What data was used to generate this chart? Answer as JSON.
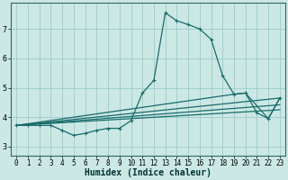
{
  "bg_color": "#cce8e4",
  "grid_color": "#99cccc",
  "line_color": "#1a6b6b",
  "xlabel": "Humidex (Indice chaleur)",
  "xlabel_fontsize": 7,
  "tick_fontsize": 5.5,
  "ylabel_ticks": [
    3,
    4,
    5,
    6,
    7
  ],
  "xlim": [
    -0.5,
    23.5
  ],
  "ylim": [
    2.7,
    7.9
  ],
  "series1_x": [
    0,
    1,
    2,
    3,
    4,
    5,
    6,
    7,
    8,
    9,
    10,
    11,
    12,
    13,
    14,
    15,
    16,
    17,
    18,
    19,
    20,
    21,
    22,
    23
  ],
  "series1_y": [
    3.72,
    3.72,
    3.72,
    3.72,
    3.55,
    3.38,
    3.45,
    3.55,
    3.62,
    3.62,
    3.88,
    4.82,
    5.25,
    7.55,
    7.28,
    7.15,
    7.0,
    6.65,
    5.42,
    4.78,
    4.82,
    4.15,
    3.95,
    4.65
  ],
  "series2_x": [
    0,
    19,
    20,
    22,
    23
  ],
  "series2_y": [
    3.72,
    4.78,
    4.82,
    3.95,
    4.65
  ],
  "series3_x": [
    0,
    23
  ],
  "series3_y": [
    3.72,
    4.65
  ],
  "series4_x": [
    0,
    23
  ],
  "series4_y": [
    3.72,
    4.42
  ],
  "series5_x": [
    0,
    23
  ],
  "series5_y": [
    3.72,
    4.25
  ]
}
